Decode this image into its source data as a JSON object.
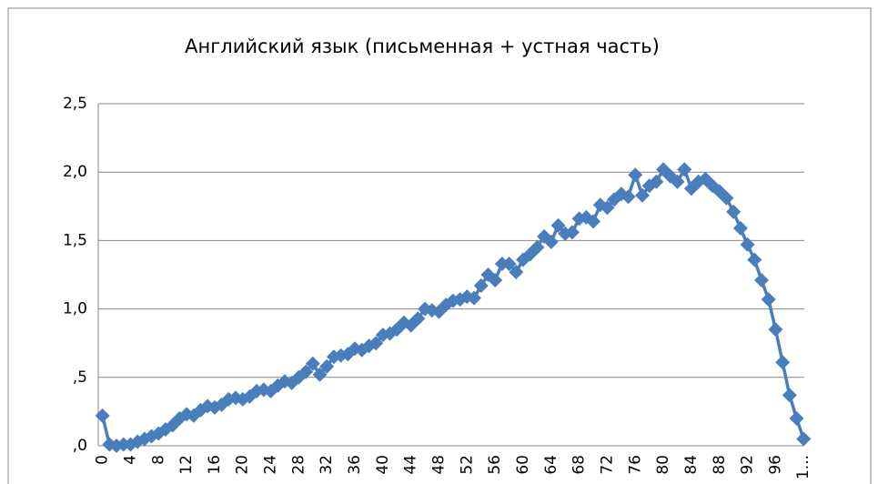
{
  "chart_data": {
    "type": "line",
    "title": "Английский язык (письменная + устная  часть)",
    "categories": [
      "0",
      null,
      null,
      null,
      "4",
      null,
      null,
      null,
      "8",
      null,
      null,
      null,
      "12",
      null,
      null,
      null,
      "16",
      null,
      null,
      null,
      "20",
      null,
      null,
      null,
      "24",
      null,
      null,
      null,
      "28",
      null,
      null,
      null,
      "32",
      null,
      null,
      null,
      "36",
      null,
      null,
      null,
      "40",
      null,
      null,
      null,
      "44",
      null,
      null,
      null,
      "48",
      null,
      null,
      null,
      "52",
      null,
      null,
      null,
      "56",
      null,
      null,
      null,
      "60",
      null,
      null,
      null,
      "64",
      null,
      null,
      null,
      "68",
      null,
      null,
      null,
      "72",
      null,
      null,
      null,
      "76",
      null,
      null,
      null,
      "80",
      null,
      null,
      null,
      "84",
      null,
      null,
      null,
      "88",
      null,
      null,
      null,
      "92",
      null,
      null,
      null,
      "96",
      null,
      null,
      null,
      "1..."
    ],
    "series": [
      {
        "color": "#4a7ebb",
        "values": [
          0.22,
          0.01,
          0.0,
          0.01,
          0.01,
          0.03,
          0.05,
          0.07,
          0.09,
          0.12,
          0.15,
          0.2,
          0.23,
          0.22,
          0.26,
          0.29,
          0.28,
          0.3,
          0.34,
          0.35,
          0.34,
          0.36,
          0.4,
          0.41,
          0.4,
          0.44,
          0.47,
          0.46,
          0.5,
          0.54,
          0.6,
          0.52,
          0.58,
          0.65,
          0.66,
          0.67,
          0.71,
          0.7,
          0.73,
          0.75,
          0.81,
          0.82,
          0.85,
          0.9,
          0.88,
          0.93,
          1.0,
          0.99,
          0.98,
          1.03,
          1.06,
          1.07,
          1.09,
          1.08,
          1.17,
          1.25,
          1.21,
          1.33,
          1.33,
          1.27,
          1.36,
          1.4,
          1.45,
          1.53,
          1.49,
          1.61,
          1.55,
          1.56,
          1.66,
          1.67,
          1.64,
          1.76,
          1.74,
          1.8,
          1.84,
          1.82,
          1.98,
          1.83,
          1.9,
          1.93,
          2.02,
          1.97,
          1.93,
          2.02,
          1.88,
          1.93,
          1.95,
          1.9,
          1.86,
          1.81,
          1.71,
          1.59,
          1.47,
          1.36,
          1.21,
          1.07,
          0.85,
          0.61,
          0.37,
          0.2,
          0.05
        ]
      }
    ],
    "ylim": [
      0,
      2.5
    ],
    "yticks": [
      {
        "value": 0,
        "label": ",0"
      },
      {
        "value": 0.5,
        "label": ",5"
      },
      {
        "value": 1,
        "label": "1,0"
      },
      {
        "value": 1.5,
        "label": "1,5"
      },
      {
        "value": 2,
        "label": "2,0"
      },
      {
        "value": 2.5,
        "label": "2,5"
      }
    ],
    "grid": true
  }
}
